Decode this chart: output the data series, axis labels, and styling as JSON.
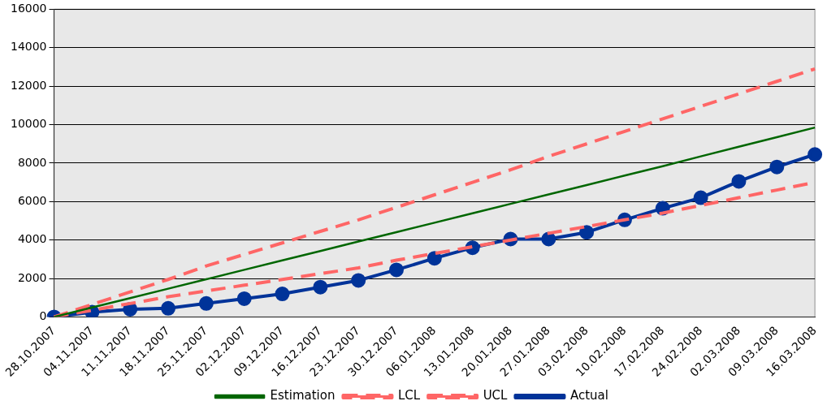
{
  "chart_data": {
    "type": "line",
    "categories": [
      "28.10.2007",
      "04.11.2007",
      "11.11.2007",
      "18.11.2007",
      "25.11.2007",
      "02.12.2007",
      "09.12.2007",
      "16.12.2007",
      "23.12.2007",
      "30.12.2007",
      "06.01.2008",
      "13.01.2008",
      "20.01.2008",
      "27.01.2008",
      "03.02.2008",
      "10.02.2008",
      "17.02.2008",
      "24.02.2008",
      "02.03.2008",
      "09.03.2008",
      "16.03.2008"
    ],
    "series": [
      {
        "name": "Estimation",
        "color": "#006600",
        "line_style": "solid",
        "marker": "none",
        "values": [
          0,
          490,
          980,
          1470,
          1960,
          2450,
          2940,
          3430,
          3920,
          4410,
          4900,
          5390,
          5880,
          6370,
          6860,
          7350,
          7840,
          8350,
          8850,
          9350,
          9850
        ]
      },
      {
        "name": "LCL",
        "color": "#ff6666",
        "line_style": "dashed",
        "marker": "none",
        "values": [
          0,
          350,
          700,
          1050,
          1350,
          1650,
          1950,
          2250,
          2550,
          2950,
          3300,
          3650,
          4000,
          4350,
          4700,
          5050,
          5400,
          5800,
          6200,
          6600,
          7000
        ]
      },
      {
        "name": "UCL",
        "color": "#ff6666",
        "line_style": "dashed",
        "marker": "none",
        "values": [
          0,
          650,
          1300,
          1950,
          2650,
          3250,
          3850,
          4450,
          5050,
          5700,
          6350,
          7000,
          7650,
          8350,
          9000,
          9650,
          10300,
          10950,
          11600,
          12250,
          12900
        ]
      },
      {
        "name": "Actual",
        "color": "#003399",
        "line_style": "solid",
        "marker": "circle",
        "values": [
          0,
          250,
          400,
          450,
          700,
          950,
          1200,
          1550,
          1900,
          2450,
          3050,
          3600,
          4050,
          4050,
          4400,
          5050,
          5650,
          6200,
          7050,
          7800,
          8450
        ]
      }
    ],
    "ylim": [
      0,
      16000
    ],
    "yticks": [
      0,
      2000,
      4000,
      6000,
      8000,
      10000,
      12000,
      14000,
      16000
    ],
    "grid": "y",
    "legend": "bottom"
  }
}
